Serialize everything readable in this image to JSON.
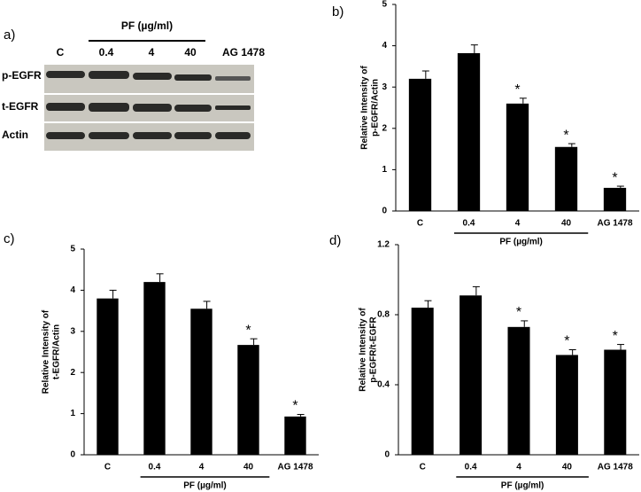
{
  "blot": {
    "title": "a)",
    "group_label": "PF  (µg/ml)",
    "lanes": [
      "C",
      "0.4",
      "4",
      "40",
      "AG 1478"
    ],
    "rows": [
      "p-EGFR",
      "t-EGFR",
      "Actin"
    ]
  },
  "chart_data": [
    {
      "type": "bar",
      "title": "b)",
      "ylabel": [
        "Relative Intensity  of",
        "p-EGFR/Actin"
      ],
      "categories": [
        "C",
        "0.4",
        "4",
        "40",
        "AG 1478"
      ],
      "group_label": "PF  (µg/ml)",
      "values": [
        3.2,
        3.82,
        2.6,
        1.55,
        0.56
      ],
      "errors": [
        0.19,
        0.2,
        0.13,
        0.08,
        0.04
      ],
      "significance": [
        null,
        null,
        "*",
        "*",
        "*"
      ],
      "color": "#000000",
      "ylim": [
        0,
        5
      ],
      "yticks": [
        0,
        1,
        2,
        3,
        4,
        5
      ]
    },
    {
      "type": "bar",
      "title": "c)",
      "ylabel": [
        "Relative Intensity of",
        "t-EGFR/Actin"
      ],
      "categories": [
        "C",
        "0.4",
        "4",
        "40",
        "AG 1478"
      ],
      "group_label": "PF  (µg/ml)",
      "values": [
        3.8,
        4.2,
        3.55,
        2.67,
        0.93
      ],
      "errors": [
        0.2,
        0.2,
        0.18,
        0.15,
        0.05
      ],
      "significance": [
        null,
        null,
        null,
        "*",
        "*"
      ],
      "color": "#000000",
      "ylim": [
        0,
        5
      ],
      "yticks": [
        0,
        1,
        2,
        3,
        4,
        5
      ]
    },
    {
      "type": "bar",
      "title": "d)",
      "ylabel": [
        "Relative Intensity  of",
        "p-EGFR/t-EGFR"
      ],
      "categories": [
        "C",
        "0.4",
        "4",
        "40",
        "AG 1478"
      ],
      "group_label": "PF  (µg/ml)",
      "values": [
        0.84,
        0.91,
        0.73,
        0.57,
        0.6
      ],
      "errors": [
        0.04,
        0.05,
        0.035,
        0.03,
        0.03
      ],
      "significance": [
        null,
        null,
        "*",
        "*",
        "*"
      ],
      "color": "#000000",
      "ylim": [
        0,
        1.2
      ],
      "yticks": [
        0,
        0.4,
        0.8,
        1.2
      ]
    }
  ]
}
